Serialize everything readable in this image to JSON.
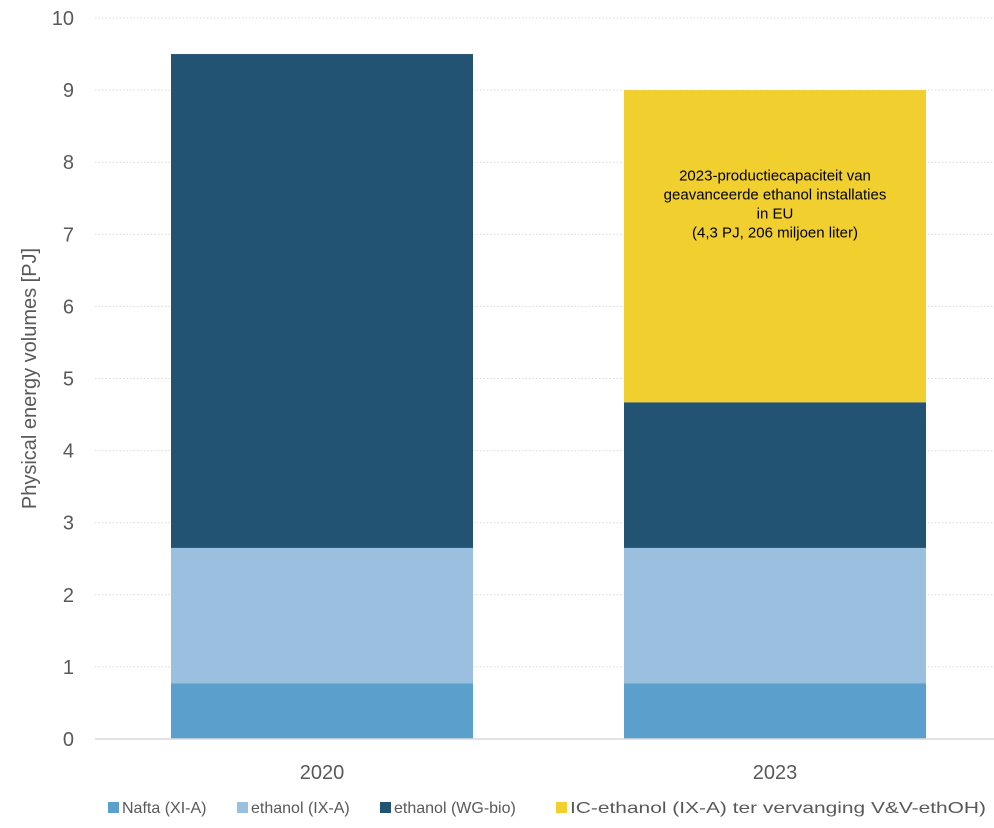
{
  "chart_data": {
    "type": "bar",
    "stacked": true,
    "categories": [
      "2020",
      "2023"
    ],
    "series": [
      {
        "name": "Nafta (XI-A)",
        "values": [
          0.77,
          0.77
        ],
        "color": "#5b9fcc"
      },
      {
        "name": "ethanol (IX-A)",
        "values": [
          1.88,
          1.88
        ],
        "color": "#9abfdf"
      },
      {
        "name": "ethanol (WG-bio)",
        "values": [
          6.85,
          2.02
        ],
        "color": "#225372"
      },
      {
        "name": "IC-ethanol (IX-A) ter vervanging V&V-ethOH)",
        "values": [
          0,
          4.33
        ],
        "color": "#f0cf2f"
      }
    ],
    "ylabel": "Physical energy volumes [PJ]",
    "ylim": [
      0,
      10
    ],
    "yticks": [
      "0",
      "1",
      "2",
      "3",
      "4",
      "5",
      "6",
      "7",
      "8",
      "9",
      "10"
    ],
    "grid": true,
    "legend_position": "bottom",
    "annotation": {
      "category": "2023",
      "series": "IC-ethanol (IX-A) ter vervanging V&V-ethOH)",
      "lines": [
        "2023-productiecapaciteit van",
        "geavanceerde ethanol installaties",
        "in EU",
        "(4,3 PJ, 206 miljoen liter)"
      ]
    }
  }
}
